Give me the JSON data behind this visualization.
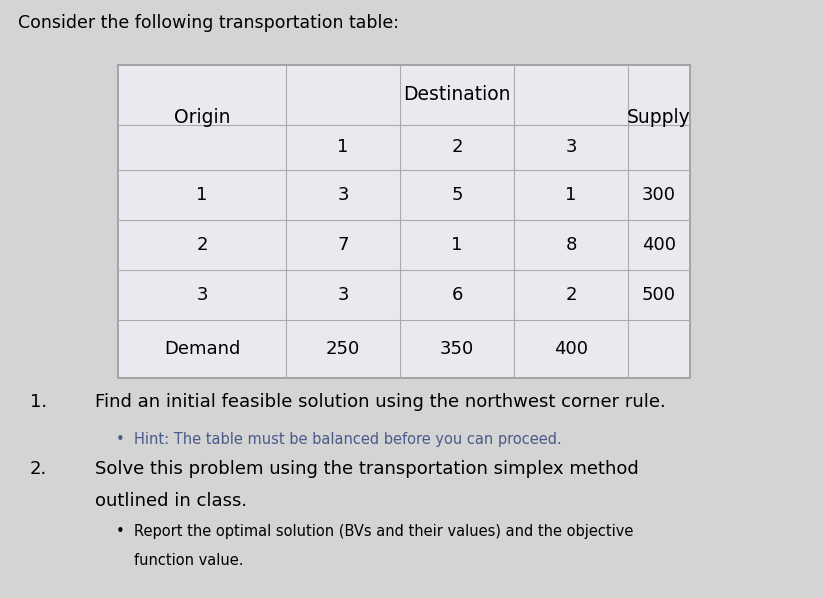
{
  "bg_color": "#d4d4d4",
  "table_bg": "#e8eaf0",
  "table_border": "#aaaaaa",
  "white_cell": "#ffffff",
  "title": "Consider the following transportation table:",
  "title_fs": 12.5,
  "table_header_dest": "Destination",
  "table_header_origin": "Origin",
  "table_header_supply": "Supply",
  "table_col_nums": [
    "1",
    "2",
    "3"
  ],
  "table_data": [
    [
      "1",
      "3",
      "5",
      "1",
      "300"
    ],
    [
      "2",
      "7",
      "1",
      "8",
      "400"
    ],
    [
      "3",
      "3",
      "6",
      "2",
      "500"
    ],
    [
      "Demand",
      "250",
      "350",
      "400",
      ""
    ]
  ],
  "item1_num": "1.",
  "item1_text": "Find an initial feasible solution using the northwest corner rule.",
  "item1_hint_bullet": "•",
  "item1_hint": "Hint: The table must be balanced before you can proceed.",
  "item1_hint_color": "#4a5a8a",
  "item2_num": "2.",
  "item2_line1": "Solve this problem using the transportation simplex method",
  "item2_line2": "outlined in class.",
  "item2_bullet": "•",
  "item2_sub1": "Report the optimal solution (BVs and their values) and the objective",
  "item2_sub2": "function value.",
  "item2_sub_color": "#000000",
  "main_fs": 13.0,
  "hint_fs": 10.5,
  "table_fs": 13.0,
  "table_header_fs": 13.5
}
